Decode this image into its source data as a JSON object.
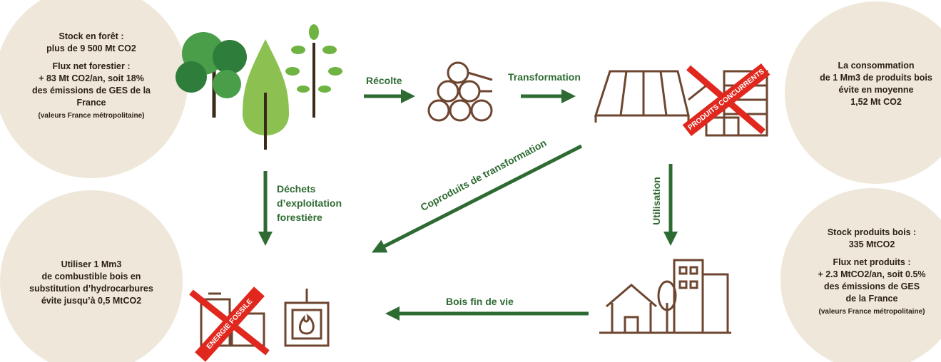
{
  "circles": [
    {
      "paragraphs": [
        [
          "Stock en forêt :",
          "plus de 9 500 Mt CO2"
        ],
        [
          "Flux net forestier :",
          "+ 83 Mt CO2/an, soit 18%",
          "des émissions de GES de la",
          "France"
        ]
      ],
      "note": "(valeurs France métropolitaine)"
    },
    {
      "paragraphs": [
        [
          "La consommation",
          "de 1 Mm3 de produits bois",
          "évite en moyenne",
          "1,52 Mt CO2"
        ]
      ]
    },
    {
      "paragraphs": [
        [
          "Utiliser 1 Mm3",
          "de combustible bois en",
          "substitution d’hydrocarbures",
          "évite jusqu’à 0,5 MtCO2"
        ]
      ]
    },
    {
      "paragraphs": [
        [
          "Stock produits bois :",
          "335 MtCO2"
        ],
        [
          "Flux net produits :",
          "+ 2.3 MtCO2/an, soit 0.5%",
          "des émissions de GES",
          "de la France"
        ]
      ],
      "note": "(valeurs France métropolitaine)"
    }
  ],
  "arrows": {
    "recolte": "Récolte",
    "transformation": "Transformation",
    "dechets": [
      "Déchets",
      "d’exploitation",
      "forestière"
    ],
    "coproduits": "Coproduits de transformation",
    "utilisation": "Utilisation",
    "fin_de_vie": "Bois fin de vie"
  },
  "crossed": {
    "produits": "PRODUITS CONCURRENTS",
    "energie": "ENERGIE FOSSILE"
  }
}
